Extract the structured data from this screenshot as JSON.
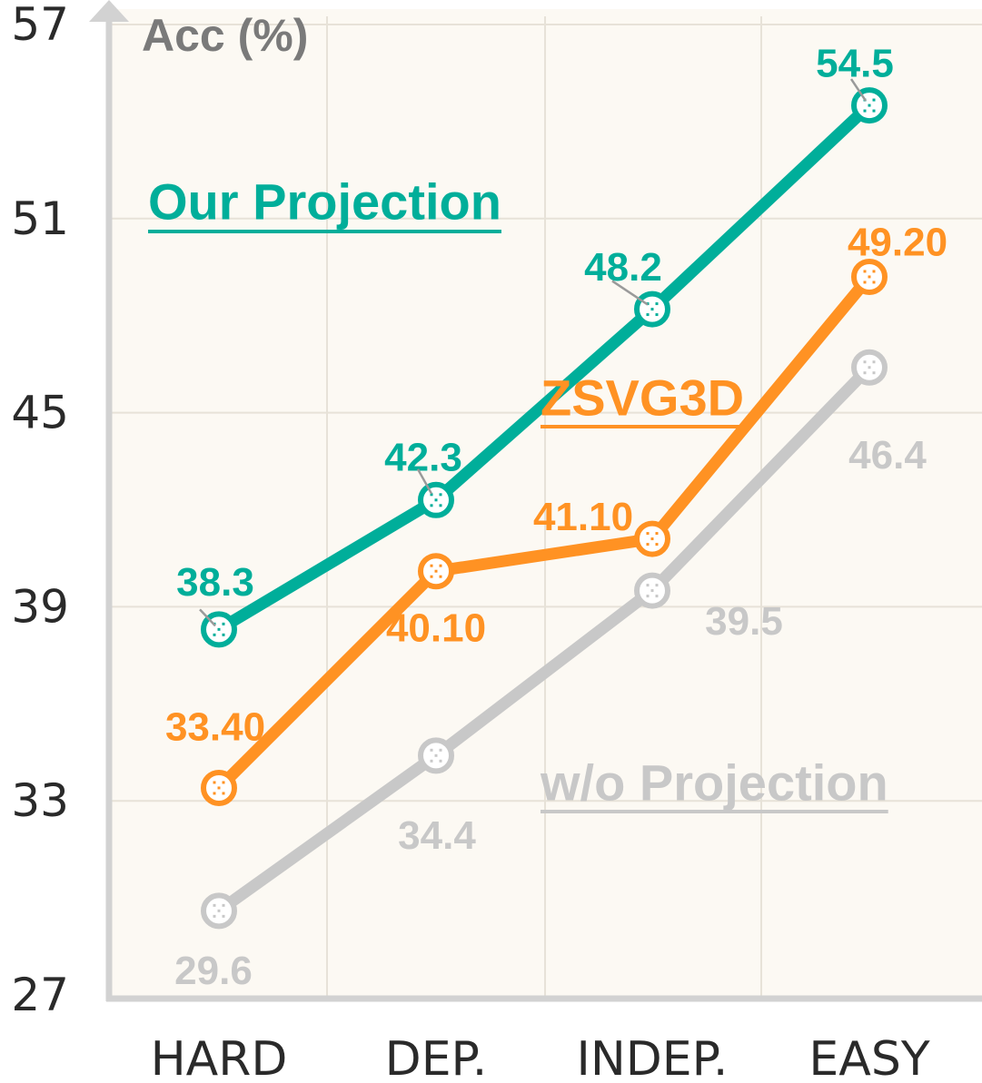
{
  "chart_data": {
    "type": "line",
    "ylabel": "Acc (%)",
    "categories": [
      "HARD",
      "DEP.",
      "INDEP.",
      "EASY"
    ],
    "ylim": [
      27,
      57
    ],
    "yticks": [
      27,
      33,
      39,
      45,
      51,
      57
    ],
    "grid": true,
    "series": [
      {
        "name": "Our Projection",
        "color": "#00AE9A",
        "values": [
          38.3,
          42.3,
          48.2,
          54.5
        ],
        "labels": [
          "38.3",
          "42.3",
          "48.2",
          "54.5"
        ]
      },
      {
        "name": "ZSVG3D",
        "color": "#FF9223",
        "values": [
          33.4,
          40.1,
          41.1,
          49.2
        ],
        "labels": [
          "33.40",
          "40.10",
          "41.10",
          "49.20"
        ]
      },
      {
        "name": "w/o Projection",
        "color": "#C8C8C8",
        "values": [
          29.6,
          34.4,
          39.5,
          46.4
        ],
        "labels": [
          "29.6",
          "34.4",
          "39.5",
          "46.4"
        ]
      }
    ]
  }
}
